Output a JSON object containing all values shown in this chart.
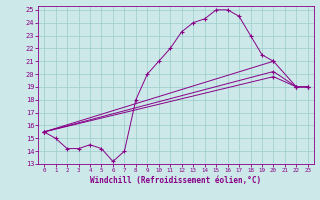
{
  "xlabel": "Windchill (Refroidissement éolien,°C)",
  "bg_color": "#cce8e8",
  "line_color": "#880088",
  "grid_color": "#99cccc",
  "xlim": [
    -0.5,
    23.5
  ],
  "ylim": [
    13,
    25.3
  ],
  "yticks": [
    13,
    14,
    15,
    16,
    17,
    18,
    19,
    20,
    21,
    22,
    23,
    24,
    25
  ],
  "xticks": [
    0,
    1,
    2,
    3,
    4,
    5,
    6,
    7,
    8,
    9,
    10,
    11,
    12,
    13,
    14,
    15,
    16,
    17,
    18,
    19,
    20,
    21,
    22,
    23
  ],
  "main_curve_x": [
    0,
    1,
    2,
    3,
    4,
    5,
    6,
    7,
    8,
    9,
    10,
    11,
    12,
    13,
    14,
    15,
    16,
    17,
    18,
    19,
    20
  ],
  "main_curve_y": [
    15.5,
    15.0,
    14.2,
    14.2,
    14.5,
    14.2,
    13.2,
    14.0,
    18.0,
    20.0,
    21.0,
    22.0,
    23.3,
    24.0,
    24.3,
    25.0,
    25.0,
    24.5,
    23.0,
    21.5,
    21.0
  ],
  "line1_x": [
    0,
    20,
    22,
    23
  ],
  "line1_y": [
    15.5,
    21.0,
    19.0,
    19.0
  ],
  "line2_x": [
    0,
    20,
    22,
    23
  ],
  "line2_y": [
    15.5,
    20.2,
    19.0,
    19.0
  ],
  "line3_x": [
    0,
    20,
    22,
    23
  ],
  "line3_y": [
    15.5,
    19.8,
    19.0,
    19.0
  ]
}
